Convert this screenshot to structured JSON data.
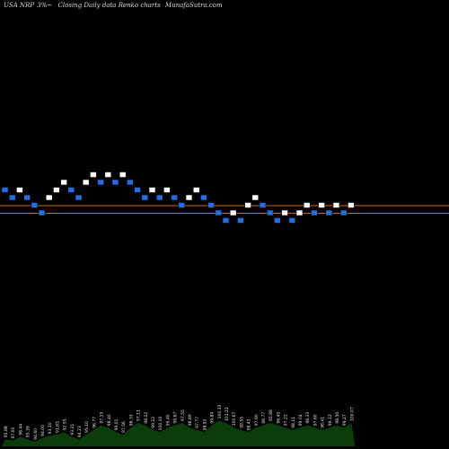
{
  "header": {
    "ticker": "USA NRP",
    "change": "3%~",
    "caption": "Closing Daily data  Renko  charts",
    "site": "MunafaSutra.com"
  },
  "colors": {
    "background": "#000000",
    "up_brick": "#ffffff",
    "down_brick": "#1e6fe8",
    "level_line": "#d2691e",
    "volume": "#0b3d0b"
  },
  "chart_data": {
    "type": "renko",
    "direction_legend": {
      "up": "white",
      "down": "blue"
    },
    "bricks": [
      {
        "d": "down",
        "level": 11
      },
      {
        "d": "down",
        "level": 10
      },
      {
        "d": "up",
        "level": 11
      },
      {
        "d": "down",
        "level": 10
      },
      {
        "d": "down",
        "level": 9
      },
      {
        "d": "down",
        "level": 8
      },
      {
        "d": "up",
        "level": 10
      },
      {
        "d": "up",
        "level": 11
      },
      {
        "d": "up",
        "level": 12
      },
      {
        "d": "down",
        "level": 11
      },
      {
        "d": "down",
        "level": 10
      },
      {
        "d": "up",
        "level": 12
      },
      {
        "d": "up",
        "level": 13
      },
      {
        "d": "down",
        "level": 12
      },
      {
        "d": "up",
        "level": 13
      },
      {
        "d": "down",
        "level": 12
      },
      {
        "d": "up",
        "level": 13
      },
      {
        "d": "down",
        "level": 12
      },
      {
        "d": "down",
        "level": 11
      },
      {
        "d": "down",
        "level": 10
      },
      {
        "d": "up",
        "level": 11
      },
      {
        "d": "down",
        "level": 10
      },
      {
        "d": "up",
        "level": 11
      },
      {
        "d": "down",
        "level": 10
      },
      {
        "d": "down",
        "level": 9
      },
      {
        "d": "up",
        "level": 10
      },
      {
        "d": "up",
        "level": 11
      },
      {
        "d": "down",
        "level": 10
      },
      {
        "d": "down",
        "level": 9
      },
      {
        "d": "down",
        "level": 8
      },
      {
        "d": "down",
        "level": 7
      },
      {
        "d": "up",
        "level": 8
      },
      {
        "d": "down",
        "level": 7
      },
      {
        "d": "up",
        "level": 9
      },
      {
        "d": "up",
        "level": 10
      },
      {
        "d": "down",
        "level": 9
      },
      {
        "d": "down",
        "level": 8
      },
      {
        "d": "down",
        "level": 7
      },
      {
        "d": "up",
        "level": 8
      },
      {
        "d": "down",
        "level": 7
      },
      {
        "d": "up",
        "level": 8
      },
      {
        "d": "up",
        "level": 9
      },
      {
        "d": "down",
        "level": 8
      },
      {
        "d": "up",
        "level": 9
      },
      {
        "d": "down",
        "level": 8
      },
      {
        "d": "up",
        "level": 9
      },
      {
        "d": "down",
        "level": 8
      },
      {
        "d": "up",
        "level": 9
      }
    ],
    "level_lines": [
      9,
      8
    ],
    "volume": {
      "values": [
        3,
        2.5,
        4,
        3,
        2,
        3.5,
        4.5,
        5,
        6,
        4,
        3,
        5,
        7,
        9,
        8,
        6,
        5,
        8,
        10,
        9,
        7,
        6,
        8,
        9,
        10,
        8,
        7,
        6,
        9,
        11,
        10,
        8,
        7,
        6,
        8,
        9,
        10,
        9,
        8,
        7,
        8,
        9,
        8,
        7,
        8,
        9,
        8,
        10
      ],
      "labels": [
        "95.88",
        "97.00",
        "96.44",
        "95.39",
        "94.60",
        "94.00",
        "93.10",
        "91.83",
        "92.55",
        "93.21",
        "94.23",
        "95.10",
        "96.77",
        "97.23",
        "98.40",
        "99.01",
        "97.56",
        "96.33",
        "97.11",
        "98.02",
        "99.22",
        "100.10",
        "99.40",
        "98.67",
        "97.55",
        "96.89",
        "97.77",
        "98.92",
        "99.84",
        "100.33",
        "101.22",
        "100.67",
        "99.55",
        "98.43",
        "97.90",
        "96.77",
        "95.88",
        "96.45",
        "97.22",
        "98.11",
        "99.04",
        "98.33",
        "97.60",
        "98.41",
        "99.12",
        "98.50",
        "99.27",
        "100.07"
      ]
    }
  }
}
